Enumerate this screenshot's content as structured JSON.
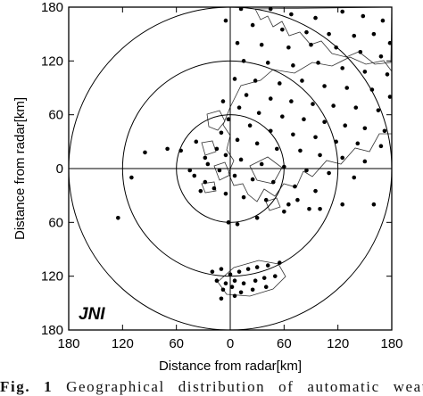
{
  "chart_data": {
    "type": "scatter",
    "title": "",
    "xlabel": "Distance from radar[km]",
    "ylabel": "Distance from radar[km]",
    "xlim": [
      -180,
      180
    ],
    "ylim": [
      -180,
      180
    ],
    "x_tick_values": [
      -180,
      -120,
      -60,
      0,
      60,
      120,
      180
    ],
    "x_tick_labels": [
      "180",
      "120",
      "60",
      "0",
      "60",
      "120",
      "180"
    ],
    "y_tick_values": [
      180,
      120,
      60,
      0,
      -60,
      -120,
      -180
    ],
    "y_tick_labels": [
      "180",
      "120",
      "60",
      "0",
      "60",
      "120",
      "180"
    ],
    "range_rings_km": [
      60,
      120,
      180
    ],
    "radar_label": "JNI",
    "grid": false,
    "series": [
      {
        "points": [
          [
            -5,
            165
          ],
          [
            12,
            178
          ],
          [
            45,
            178
          ],
          [
            68,
            172
          ],
          [
            95,
            168
          ],
          [
            125,
            175
          ],
          [
            148,
            170
          ],
          [
            170,
            165
          ],
          [
            25,
            160
          ],
          [
            58,
            155
          ],
          [
            85,
            152
          ],
          [
            110,
            150
          ],
          [
            138,
            148
          ],
          [
            160,
            150
          ],
          [
            178,
            140
          ],
          [
            8,
            140
          ],
          [
            35,
            138
          ],
          [
            65,
            135
          ],
          [
            90,
            138
          ],
          [
            118,
            135
          ],
          [
            145,
            130
          ],
          [
            168,
            125
          ],
          [
            15,
            120
          ],
          [
            42,
            118
          ],
          [
            70,
            115
          ],
          [
            98,
            118
          ],
          [
            125,
            112
          ],
          [
            150,
            108
          ],
          [
            175,
            105
          ],
          [
            5,
            100
          ],
          [
            28,
            98
          ],
          [
            55,
            95
          ],
          [
            80,
            98
          ],
          [
            105,
            92
          ],
          [
            130,
            90
          ],
          [
            158,
            88
          ],
          [
            178,
            80
          ],
          [
            18,
            82
          ],
          [
            45,
            78
          ],
          [
            68,
            75
          ],
          [
            92,
            72
          ],
          [
            115,
            70
          ],
          [
            140,
            68
          ],
          [
            165,
            65
          ],
          [
            -8,
            75
          ],
          [
            10,
            68
          ],
          [
            32,
            62
          ],
          [
            58,
            58
          ],
          [
            82,
            55
          ],
          [
            105,
            52
          ],
          [
            128,
            48
          ],
          [
            150,
            45
          ],
          [
            172,
            42
          ],
          [
            -2,
            55
          ],
          [
            22,
            48
          ],
          [
            45,
            42
          ],
          [
            70,
            38
          ],
          [
            95,
            35
          ],
          [
            118,
            30
          ],
          [
            142,
            28
          ],
          [
            168,
            25
          ],
          [
            -10,
            40
          ],
          [
            8,
            32
          ],
          [
            30,
            28
          ],
          [
            52,
            22
          ],
          [
            78,
            20
          ],
          [
            100,
            15
          ],
          [
            125,
            12
          ],
          [
            150,
            8
          ],
          [
            -15,
            22
          ],
          [
            -5,
            15
          ],
          [
            12,
            10
          ],
          [
            35,
            5
          ],
          [
            60,
            2
          ],
          [
            85,
            -2
          ],
          [
            110,
            -5
          ],
          [
            138,
            -10
          ],
          [
            -25,
            5
          ],
          [
            -12,
            -2
          ],
          [
            5,
            -8
          ],
          [
            25,
            -12
          ],
          [
            48,
            -15
          ],
          [
            72,
            -20
          ],
          [
            95,
            -25
          ],
          [
            -40,
            -8
          ],
          [
            -28,
            -15
          ],
          [
            -18,
            -22
          ],
          [
            -5,
            -28
          ],
          [
            15,
            -32
          ],
          [
            40,
            -35
          ],
          [
            65,
            -40
          ],
          [
            88,
            -45
          ],
          [
            -55,
            20
          ],
          [
            -38,
            30
          ],
          [
            -28,
            12
          ],
          [
            -45,
            -2
          ],
          [
            -33,
            -25
          ],
          [
            -70,
            22
          ],
          [
            -95,
            18
          ],
          [
            -110,
            -10
          ],
          [
            -125,
            -55
          ],
          [
            -2,
            -60
          ],
          [
            8,
            -62
          ],
          [
            30,
            -55
          ],
          [
            60,
            -48
          ],
          [
            75,
            -35
          ],
          [
            100,
            -45
          ],
          [
            125,
            -40
          ],
          [
            160,
            -40
          ],
          [
            -20,
            -115
          ],
          [
            -10,
            -112
          ],
          [
            0,
            -118
          ],
          [
            10,
            -115
          ],
          [
            20,
            -112
          ],
          [
            30,
            -110
          ],
          [
            42,
            -108
          ],
          [
            55,
            -105
          ],
          [
            -15,
            -125
          ],
          [
            -5,
            -128
          ],
          [
            5,
            -125
          ],
          [
            15,
            -128
          ],
          [
            28,
            -125
          ],
          [
            38,
            -122
          ],
          [
            50,
            -120
          ],
          [
            -8,
            -135
          ],
          [
            2,
            -132
          ],
          [
            12,
            -138
          ],
          [
            25,
            -135
          ],
          [
            40,
            -132
          ],
          [
            -10,
            -145
          ],
          [
            5,
            -142
          ]
        ]
      }
    ]
  },
  "caption": {
    "label": "Fig. 1",
    "text": "Geographical distribution of automatic weather"
  }
}
